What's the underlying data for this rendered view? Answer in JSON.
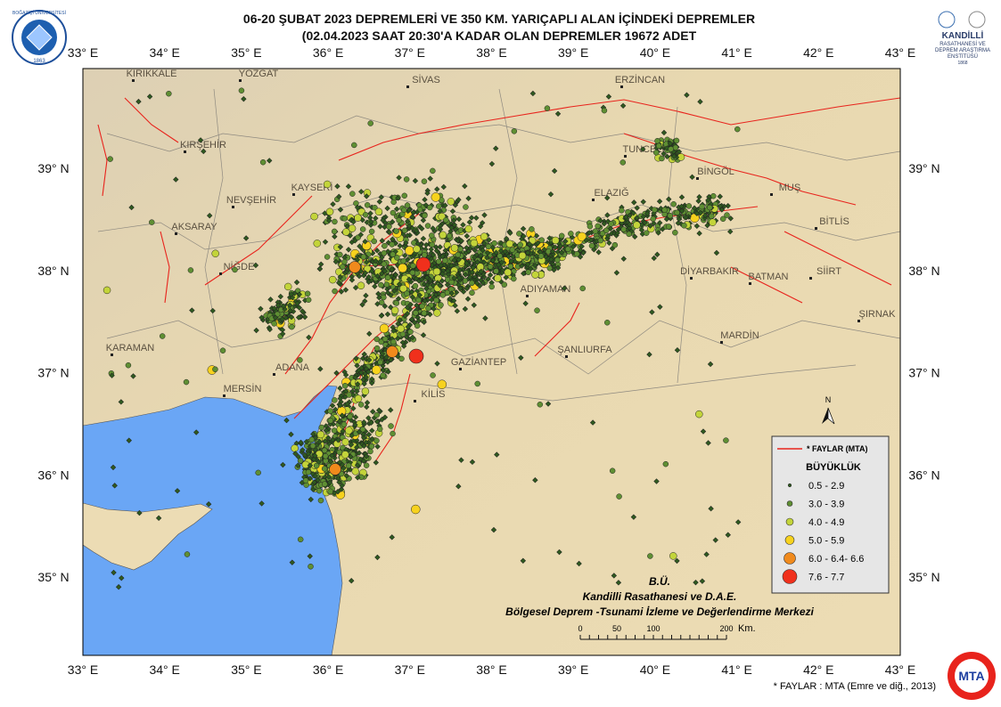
{
  "header": {
    "title_lines": [
      "06-20 ŞUBAT 2023  DEPREMLERİ VE 350  KM. YARIÇAPLI  ALAN  İÇİNDEKİ  DEPREMLER",
      "(02.04.2023 SAAT  20:30'A  KADAR OLAN DEPREMLER  19672 ADET"
    ]
  },
  "logos": {
    "left_text": "BOĞAZİÇİ ÜNİVERSİTESİ",
    "left_year": "1863",
    "right_lines": [
      "KANDİLLİ",
      "RASATHANESİ VE",
      "DEPREM ARAŞTIRMA",
      "ENSTİTÜSÜ"
    ],
    "right_year": "1868",
    "bottom": "MTA"
  },
  "axes": {
    "x_ticks": [
      "33° E",
      "34° E",
      "35° E",
      "36° E",
      "37° E",
      "38° E",
      "39° E",
      "40° E",
      "41° E",
      "42° E",
      "43° E"
    ],
    "y_ticks": [
      "39° N",
      "38° N",
      "37° N",
      "36° N",
      "35° N"
    ]
  },
  "cities": [
    "KIRIKKALE",
    "YOZGAT",
    "SİVAS",
    "ERZİNCAN",
    "KIRŞEHİR",
    "TUNCELİ",
    "BİNGÖL",
    "NEVŞEHİR",
    "KAYSERİ",
    "ELAZIĞ",
    "MUŞ",
    "BİTLİS",
    "AKSARAY",
    "NİĞDE",
    "DİYARBAKIR",
    "BATMAN",
    "SİİRT",
    "ADIYAMAN",
    "ŞIRNAK",
    "MARDİN",
    "KARAMAN",
    "ŞANLIURFA",
    "ADANA",
    "GAZİANTEP",
    "MERSİN",
    "KİLİS"
  ],
  "legend": {
    "faults": "* FAYLAR (MTA)",
    "fault_color": "#e8231c",
    "title": "BÜYÜKLÜK",
    "classes": [
      {
        "label": "0.5 - 2.9",
        "color": "#2f5a1f"
      },
      {
        "label": "3.0 - 3.9",
        "color": "#5f8f33"
      },
      {
        "label": "4.0 - 4.9",
        "color": "#c3d43a"
      },
      {
        "label": "5.0 - 5.9",
        "color": "#f7d21e"
      },
      {
        "label": "6.0 - 6.4- 6.6",
        "color": "#f08a1c"
      },
      {
        "label": "7.6 - 7.7",
        "color": "#f0301c"
      }
    ]
  },
  "north": "N",
  "credits": [
    "B.Ü.",
    "Kandilli Rasathanesi ve D.A.E.",
    "Bölgesel Deprem -Tsunami İzleme ve Değerlendirme Merkezi"
  ],
  "scale": {
    "ticks": [
      "0",
      "50",
      "100",
      "200"
    ],
    "unit": "Km."
  },
  "footnote": "* FAYLAR : MTA (Emre ve diğ., 2013)"
}
